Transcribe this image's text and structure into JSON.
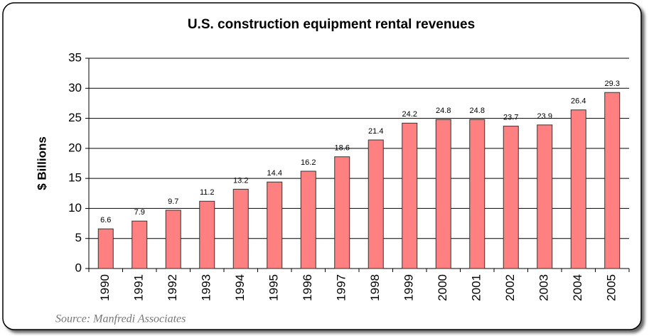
{
  "chart_data": {
    "type": "bar",
    "title": "U.S. construction equipment rental revenues",
    "y_label": "$ Billions",
    "source": "Source:  Manfredi Associates",
    "categories": [
      "1990",
      "1991",
      "1992",
      "1993",
      "1994",
      "1995",
      "1996",
      "1997",
      "1998",
      "1999",
      "2000",
      "2001",
      "2002",
      "2003",
      "2004",
      "2005"
    ],
    "values": [
      6.6,
      7.9,
      9.7,
      11.2,
      13.2,
      14.4,
      16.2,
      18.6,
      21.4,
      24.2,
      24.8,
      24.8,
      23.7,
      23.9,
      26.4,
      29.3
    ],
    "color": "#ff8080",
    "ylim": [
      0,
      35
    ],
    "yticks": [
      0,
      5,
      10,
      15,
      20,
      25,
      30,
      35
    ],
    "grid": true
  }
}
